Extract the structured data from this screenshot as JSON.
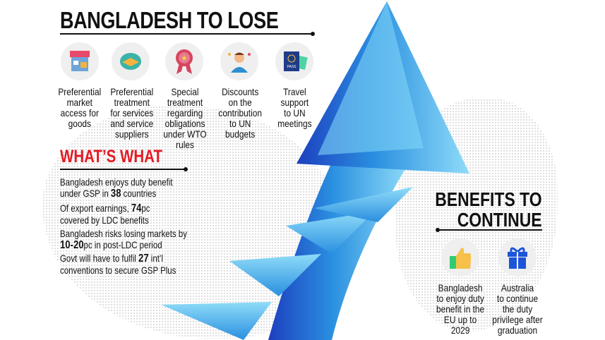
{
  "lose": {
    "title": "BANGLADESH TO LOSE",
    "items": [
      {
        "icon": "storefront-icon",
        "label": [
          "Preferential",
          "market",
          "access for",
          "goods"
        ]
      },
      {
        "icon": "handshake-icon",
        "label": [
          "Preferential",
          "treatment",
          "for services",
          "and service",
          "suppliers"
        ]
      },
      {
        "icon": "award-rosette-icon",
        "label": [
          "Special",
          "treatment",
          "regarding",
          "obligations",
          "under WTO",
          "rules"
        ]
      },
      {
        "icon": "businessman-icon",
        "label": [
          "Discounts",
          "on the",
          "contribution",
          "to UN",
          "budgets"
        ]
      },
      {
        "icon": "passport-icon",
        "label": [
          "Travel",
          "support",
          "to UN",
          "meetings"
        ]
      }
    ]
  },
  "whats_what": {
    "title": "WHAT’S WHAT",
    "facts": [
      {
        "pre": "Bangladesh enjoys duty benefit under GSP in ",
        "num": "38",
        "post": " countries"
      },
      {
        "pre": "Of export earnings, ",
        "num": "74",
        "post": "pc covered by LDC benefits"
      },
      {
        "pre": "Bangladesh risks losing markets by ",
        "num": "10-20",
        "post": "pc in post-LDC period"
      },
      {
        "pre": "Govt will have to fulfil ",
        "num": "27",
        "post": " int’l conventions to secure GSP Plus"
      }
    ]
  },
  "benefits": {
    "title_line1": "BENEFITS TO",
    "title_line2": "CONTINUE",
    "items": [
      {
        "icon": "thumbs-up-icon",
        "label": [
          "Bangladesh",
          "to enjoy duty",
          "benefit in the",
          "EU up to",
          "2029"
        ]
      },
      {
        "icon": "gift-icon",
        "label": [
          "Australia",
          "to continue",
          "the duty",
          "privilege after",
          "graduation"
        ]
      }
    ]
  },
  "colors": {
    "accent_red": "#e31b23",
    "arrow_blue": "#2a8fe0",
    "arrow_dark": "#1d3fbf",
    "arrow_light": "#7fd3f7"
  }
}
